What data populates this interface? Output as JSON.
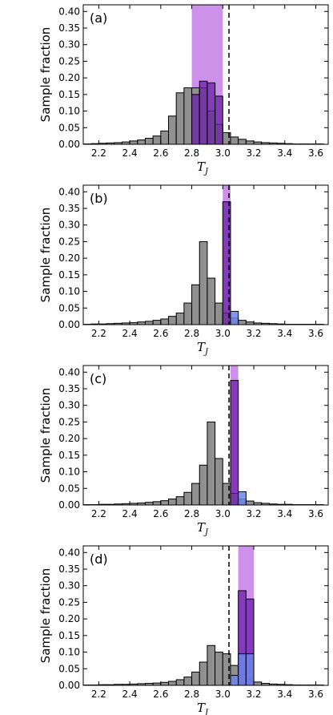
{
  "figure": {
    "ylabel": "Sample fraction",
    "xlabel_main": "T",
    "xlabel_sub": "J"
  },
  "colors": {
    "gray_hist": "#909090",
    "purple_hist": "#6a1fa8",
    "blue_hist": "#6f86e6",
    "band": "#c47ee6",
    "edge": "#000000"
  },
  "chart_data": [
    {
      "type": "bar",
      "label": "(a)",
      "xlim": [
        2.1,
        3.68
      ],
      "ylim": [
        0,
        0.42
      ],
      "xticks": [
        "2.2",
        "2.4",
        "2.6",
        "2.8",
        "3.0",
        "3.2",
        "3.4",
        "3.6"
      ],
      "yticks": [
        "0.00",
        "0.05",
        "0.10",
        "0.15",
        "0.20",
        "0.25",
        "0.30",
        "0.35",
        "0.40"
      ],
      "bin_width": 0.05,
      "band": [
        2.8,
        3.0
      ],
      "dashed_x": 3.04,
      "gray": {
        "start": 2.1,
        "values": [
          0.001,
          0.002,
          0.003,
          0.004,
          0.005,
          0.007,
          0.01,
          0.013,
          0.018,
          0.025,
          0.04,
          0.085,
          0.155,
          0.17,
          0.17,
          0.17,
          0.1,
          0.06,
          0.035,
          0.022,
          0.015,
          0.01,
          0.007,
          0.005,
          0.004,
          0.003,
          0.002,
          0.001,
          0.001,
          0.001,
          0.001
        ]
      },
      "purple": {
        "start": 2.8,
        "values": [
          0.15,
          0.19,
          0.185,
          0.145
        ]
      },
      "blue": {
        "start": 2.8,
        "values": []
      }
    },
    {
      "type": "bar",
      "label": "(b)",
      "xlim": [
        2.1,
        3.68
      ],
      "ylim": [
        0,
        0.42
      ],
      "xticks": [
        "2.2",
        "2.4",
        "2.6",
        "2.8",
        "3.0",
        "3.2",
        "3.4",
        "3.6"
      ],
      "yticks": [
        "0.00",
        "0.05",
        "0.10",
        "0.15",
        "0.20",
        "0.25",
        "0.30",
        "0.35",
        "0.40"
      ],
      "bin_width": 0.05,
      "band": [
        3.0,
        3.05
      ],
      "dashed_x": 3.04,
      "gray": {
        "start": 2.1,
        "values": [
          0.001,
          0.002,
          0.002,
          0.003,
          0.004,
          0.005,
          0.006,
          0.008,
          0.01,
          0.013,
          0.017,
          0.025,
          0.035,
          0.065,
          0.12,
          0.25,
          0.14,
          0.065,
          0.035,
          0.02,
          0.013,
          0.008,
          0.005,
          0.004,
          0.003,
          0.002,
          0.001,
          0.001,
          0.001,
          0.001,
          0.001
        ]
      },
      "purple": {
        "start": 3.0,
        "values": [
          0.37
        ]
      },
      "blue": {
        "start": 3.05,
        "values": [
          0.04
        ]
      }
    },
    {
      "type": "bar",
      "label": "(c)",
      "xlim": [
        2.1,
        3.68
      ],
      "ylim": [
        0,
        0.42
      ],
      "xticks": [
        "2.2",
        "2.4",
        "2.6",
        "2.8",
        "3.0",
        "3.2",
        "3.4",
        "3.6"
      ],
      "yticks": [
        "0.00",
        "0.05",
        "0.10",
        "0.15",
        "0.20",
        "0.25",
        "0.30",
        "0.35",
        "0.40"
      ],
      "bin_width": 0.05,
      "band": [
        3.05,
        3.1
      ],
      "dashed_x": 3.04,
      "gray": {
        "start": 2.1,
        "values": [
          0.001,
          0.001,
          0.002,
          0.002,
          0.003,
          0.004,
          0.005,
          0.006,
          0.008,
          0.01,
          0.013,
          0.018,
          0.025,
          0.038,
          0.065,
          0.12,
          0.25,
          0.14,
          0.065,
          0.035,
          0.018,
          0.012,
          0.007,
          0.005,
          0.003,
          0.002,
          0.002,
          0.001,
          0.001,
          0.001,
          0.001
        ]
      },
      "purple": {
        "start": 3.05,
        "values": [
          0.375
        ]
      },
      "blue": {
        "start": 3.1,
        "values": [
          0.04
        ]
      }
    },
    {
      "type": "bar",
      "label": "(d)",
      "xlim": [
        2.1,
        3.68
      ],
      "ylim": [
        0,
        0.42
      ],
      "xticks": [
        "2.2",
        "2.4",
        "2.6",
        "2.8",
        "3.0",
        "3.2",
        "3.4",
        "3.6"
      ],
      "yticks": [
        "0.00",
        "0.05",
        "0.10",
        "0.15",
        "0.20",
        "0.25",
        "0.30",
        "0.35",
        "0.40"
      ],
      "bin_width": 0.05,
      "band": [
        3.1,
        3.2
      ],
      "dashed_x": 3.04,
      "gray": {
        "start": 2.1,
        "values": [
          0.001,
          0.001,
          0.002,
          0.002,
          0.003,
          0.003,
          0.004,
          0.005,
          0.006,
          0.007,
          0.009,
          0.012,
          0.017,
          0.025,
          0.04,
          0.07,
          0.12,
          0.1,
          0.095,
          0.06,
          0.03,
          0.018,
          0.01,
          0.006,
          0.004,
          0.003,
          0.002,
          0.001,
          0.001,
          0.001,
          0.001
        ]
      },
      "purple": {
        "start": 3.1,
        "values": [
          0.285,
          0.26
        ]
      },
      "blue": {
        "start": 3.05,
        "values": [
          0.03,
          0.095,
          0.095
        ]
      }
    }
  ]
}
